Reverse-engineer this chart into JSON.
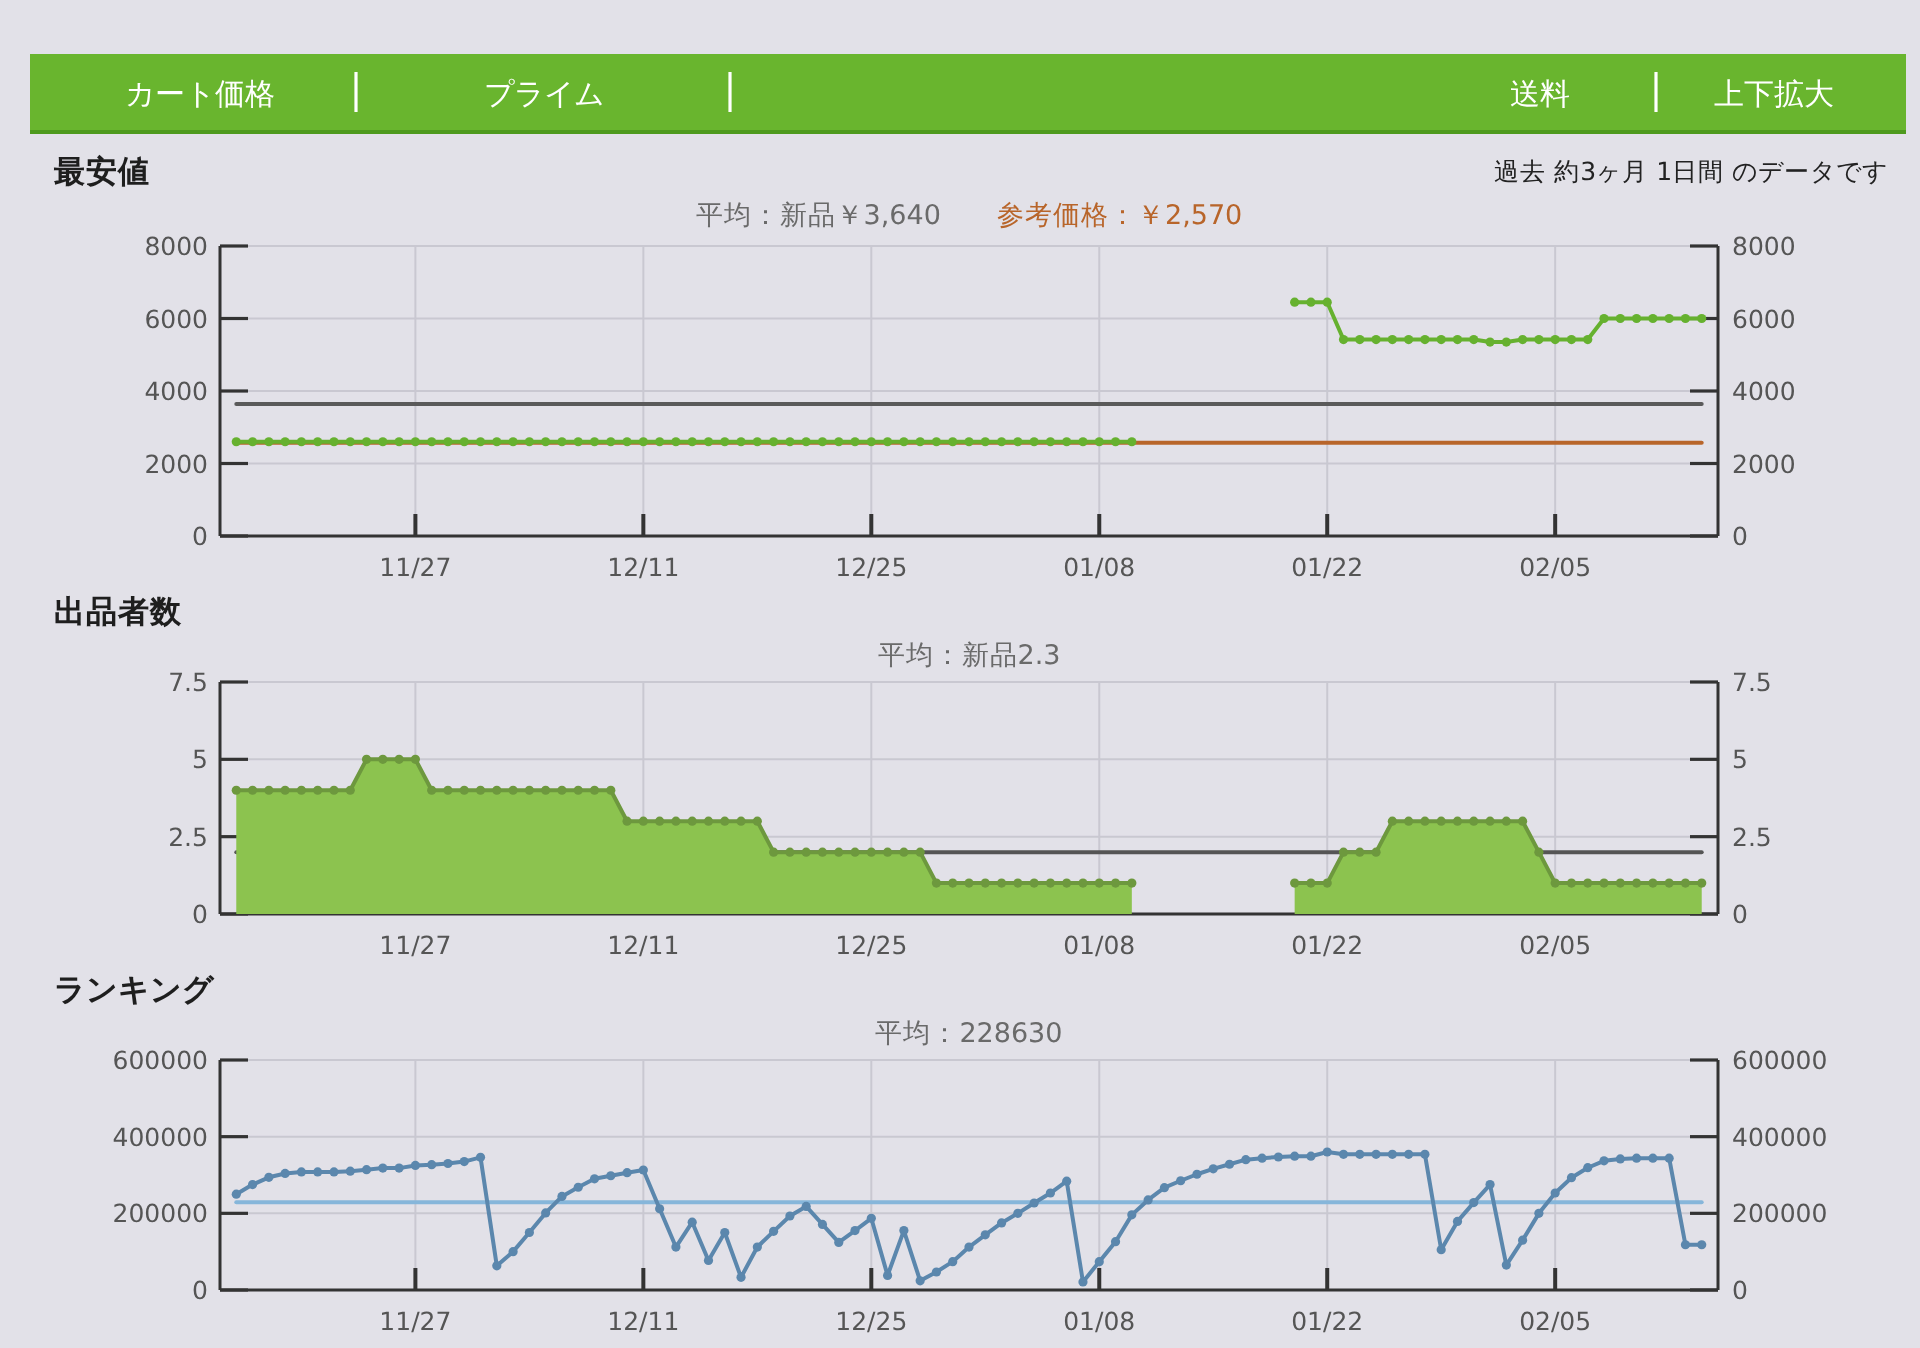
{
  "chart_data": [
    {
      "type": "other",
      "annotations": [
        "カート価格",
        "プライム",
        "送料",
        "上下拡大"
      ]
    },
    {
      "type": "line",
      "title": "最安値",
      "subtitle": "平均：新品￥3,640",
      "annotations": [
        "過去 約3ヶ月 1日間 のデータです"
      ],
      "categories": [
        null,
        null,
        null,
        null,
        null,
        null,
        null,
        null,
        null,
        null,
        null,
        "11/27",
        null,
        null,
        null,
        null,
        null,
        null,
        null,
        null,
        null,
        null,
        null,
        null,
        null,
        "12/11",
        null,
        null,
        null,
        null,
        null,
        null,
        null,
        null,
        null,
        null,
        null,
        null,
        null,
        "12/25",
        null,
        null,
        null,
        null,
        null,
        null,
        null,
        null,
        null,
        null,
        null,
        null,
        null,
        "01/08",
        null,
        null,
        null,
        null,
        null,
        null,
        null,
        null,
        null,
        null,
        null,
        null,
        null,
        "01/22",
        null,
        null,
        null,
        null,
        null,
        null,
        null,
        null,
        null,
        null,
        null,
        null,
        null,
        "02/05",
        null,
        null,
        null,
        null,
        null,
        null,
        null,
        null,
        null
      ],
      "ylim": [
        0,
        8000
      ],
      "yticks": [
        0,
        2000,
        4000,
        6000,
        8000
      ],
      "y2lim": [
        0,
        8000
      ],
      "y2ticks": [
        0,
        2000,
        4000,
        6000,
        8000
      ],
      "grid": true,
      "marker": "circle",
      "ref_lines": [
        {
          "axis": "y",
          "value": 3640,
          "color": "#5a5a5a"
        },
        {
          "axis": "y",
          "value": 2570,
          "color": "#b8652a",
          "label": "参考価格：￥2,570"
        }
      ],
      "series": [
        {
          "color": "#66b12f",
          "values": [
            2600,
            2600,
            2600,
            2600,
            2600,
            2600,
            2600,
            2600,
            2600,
            2600,
            2600,
            2600,
            2600,
            2600,
            2600,
            2600,
            2600,
            2600,
            2600,
            2600,
            2600,
            2600,
            2600,
            2600,
            2600,
            2600,
            2600,
            2600,
            2600,
            2600,
            2600,
            2600,
            2600,
            2600,
            2600,
            2600,
            2600,
            2600,
            2600,
            2600,
            2600,
            2600,
            2600,
            2600,
            2600,
            2600,
            2600,
            2600,
            2600,
            2600,
            2600,
            2600,
            2600,
            2600,
            2600,
            2600,
            null,
            null,
            null,
            null,
            null,
            null,
            null,
            null,
            null,
            6450,
            6450,
            6450,
            5420,
            5420,
            5420,
            5420,
            5420,
            5420,
            5420,
            5420,
            5420,
            5350,
            5350,
            5420,
            5420,
            5420,
            5420,
            5420,
            6000,
            6000,
            6000,
            6000,
            6000,
            6000,
            6000
          ]
        }
      ]
    },
    {
      "type": "area",
      "title": "出品者数",
      "subtitle": "平均：新品2.3",
      "categories": [
        null,
        null,
        null,
        null,
        null,
        null,
        null,
        null,
        null,
        null,
        null,
        "11/27",
        null,
        null,
        null,
        null,
        null,
        null,
        null,
        null,
        null,
        null,
        null,
        null,
        null,
        "12/11",
        null,
        null,
        null,
        null,
        null,
        null,
        null,
        null,
        null,
        null,
        null,
        null,
        null,
        "12/25",
        null,
        null,
        null,
        null,
        null,
        null,
        null,
        null,
        null,
        null,
        null,
        null,
        null,
        "01/08",
        null,
        null,
        null,
        null,
        null,
        null,
        null,
        null,
        null,
        null,
        null,
        null,
        null,
        "01/22",
        null,
        null,
        null,
        null,
        null,
        null,
        null,
        null,
        null,
        null,
        null,
        null,
        null,
        "02/05",
        null,
        null,
        null,
        null,
        null,
        null,
        null,
        null,
        null
      ],
      "ylim": [
        0,
        7.5
      ],
      "yticks": [
        0,
        2.5,
        5,
        7.5
      ],
      "y2lim": [
        0,
        7.5
      ],
      "y2ticks": [
        0,
        2.5,
        5,
        7.5
      ],
      "grid": true,
      "marker": "circle",
      "ref_lines": [
        {
          "axis": "y",
          "value": 2,
          "color": "#555555"
        }
      ],
      "series": [
        {
          "color": "#8cc34f",
          "values": [
            4,
            4,
            4,
            4,
            4,
            4,
            4,
            4,
            5,
            5,
            5,
            5,
            4,
            4,
            4,
            4,
            4,
            4,
            4,
            4,
            4,
            4,
            4,
            4,
            3,
            3,
            3,
            3,
            3,
            3,
            3,
            3,
            3,
            2,
            2,
            2,
            2,
            2,
            2,
            2,
            2,
            2,
            2,
            1,
            1,
            1,
            1,
            1,
            1,
            1,
            1,
            1,
            1,
            1,
            1,
            1,
            null,
            null,
            null,
            null,
            null,
            null,
            null,
            null,
            null,
            1,
            1,
            1,
            2,
            2,
            2,
            3,
            3,
            3,
            3,
            3,
            3,
            3,
            3,
            3,
            2,
            1,
            1,
            1,
            1,
            1,
            1,
            1,
            1,
            1,
            1
          ]
        }
      ]
    },
    {
      "type": "line",
      "title": "ランキング",
      "subtitle": "平均：228630",
      "categories": [
        null,
        null,
        null,
        null,
        null,
        null,
        null,
        null,
        null,
        null,
        null,
        "11/27",
        null,
        null,
        null,
        null,
        null,
        null,
        null,
        null,
        null,
        null,
        null,
        null,
        null,
        "12/11",
        null,
        null,
        null,
        null,
        null,
        null,
        null,
        null,
        null,
        null,
        null,
        null,
        null,
        "12/25",
        null,
        null,
        null,
        null,
        null,
        null,
        null,
        null,
        null,
        null,
        null,
        null,
        null,
        "01/08",
        null,
        null,
        null,
        null,
        null,
        null,
        null,
        null,
        null,
        null,
        null,
        null,
        null,
        "01/22",
        null,
        null,
        null,
        null,
        null,
        null,
        null,
        null,
        null,
        null,
        null,
        null,
        null,
        "02/05",
        null,
        null,
        null,
        null,
        null,
        null,
        null,
        null,
        null
      ],
      "ylim": [
        0,
        600000
      ],
      "yticks": [
        0,
        200000,
        400000,
        600000
      ],
      "y2lim": [
        0,
        600000
      ],
      "y2ticks": [
        0,
        200000,
        400000,
        600000
      ],
      "grid": true,
      "marker": "circle",
      "ref_lines": [
        {
          "axis": "y",
          "value": 228630,
          "color": "#86b6da"
        }
      ],
      "series": [
        {
          "color": "#5b87ad",
          "values": [
            250000,
            275000,
            294000,
            304000,
            308000,
            308000,
            308000,
            310000,
            314000,
            318000,
            318000,
            325000,
            327000,
            330000,
            335000,
            346000,
            63000,
            100000,
            150000,
            201000,
            244000,
            268000,
            290000,
            298000,
            306000,
            313000,
            212000,
            112000,
            177000,
            77000,
            150000,
            33000,
            112000,
            153000,
            193000,
            218000,
            171000,
            124000,
            155000,
            187000,
            38000,
            155000,
            24000,
            47000,
            74000,
            112000,
            144000,
            175000,
            200000,
            227000,
            253000,
            284000,
            21000,
            74000,
            126000,
            196000,
            235000,
            267000,
            285000,
            302000,
            316000,
            328000,
            340000,
            344000,
            347000,
            349000,
            349000,
            360000,
            354000,
            354000,
            354000,
            354000,
            354000,
            354000,
            105000,
            179000,
            228000,
            275000,
            65000,
            130000,
            200000,
            253000,
            293000,
            319000,
            337000,
            342000,
            344000,
            344000,
            344000,
            118000,
            118000
          ]
        }
      ]
    }
  ]
}
